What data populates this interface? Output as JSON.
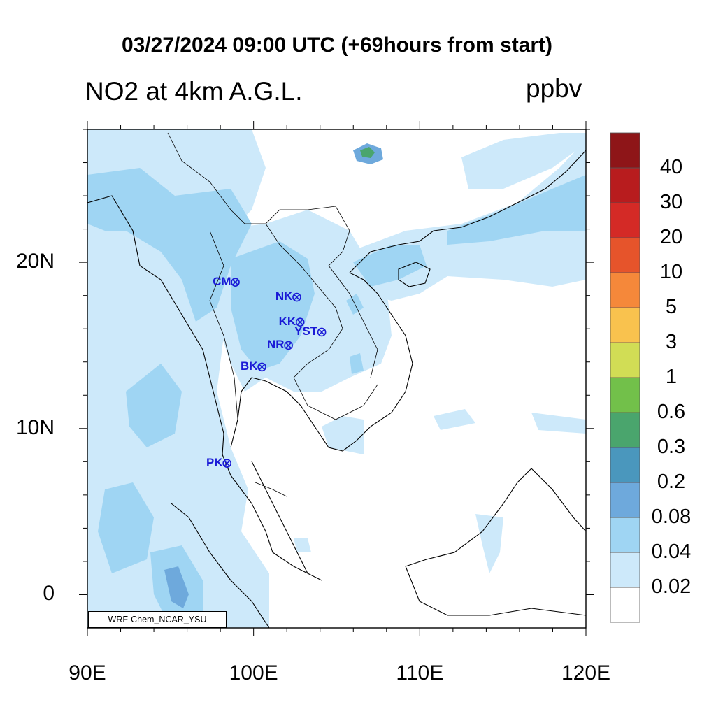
{
  "title": "03/27/2024 09:00 UTC (+69hours from start)",
  "field_name": "NO2 at 4km A.G.L.",
  "units": "ppbv",
  "credit": "WRF-Chem_NCAR_YSU",
  "map": {
    "lon_range": [
      90,
      120
    ],
    "lat_range": [
      -2,
      28
    ],
    "lon_ticks": [
      {
        "value": 90,
        "label": "90E"
      },
      {
        "value": 100,
        "label": "100E"
      },
      {
        "value": 110,
        "label": "110E"
      },
      {
        "value": 120,
        "label": "120E"
      }
    ],
    "lat_ticks": [
      {
        "value": 0,
        "label": "0"
      },
      {
        "value": 10,
        "label": "10N"
      },
      {
        "value": 20,
        "label": "20N"
      }
    ],
    "minor_tick_step_deg": 2
  },
  "colorbar": {
    "levels": [
      "0.02",
      "0.04",
      "0.08",
      "0.2",
      "0.3",
      "0.6",
      "1",
      "3",
      "5",
      "10",
      "20",
      "30",
      "40"
    ],
    "colors": [
      "#ffffff",
      "#cde9fa",
      "#9fd5f3",
      "#6ea9dc",
      "#4a97bd",
      "#4aa56d",
      "#72c04a",
      "#d1dd55",
      "#f9c24e",
      "#f5883a",
      "#e6542b",
      "#d42a26",
      "#b81c1e",
      "#8e1518"
    ]
  },
  "stations": [
    {
      "label": "CM",
      "lon": 98.9,
      "lat": 18.8
    },
    {
      "label": "NK",
      "lon": 102.6,
      "lat": 17.9
    },
    {
      "label": "KK",
      "lon": 102.8,
      "lat": 16.4
    },
    {
      "label": "YST",
      "lon": 104.1,
      "lat": 15.8
    },
    {
      "label": "NR",
      "lon": 102.1,
      "lat": 15.0
    },
    {
      "label": "BK",
      "lon": 100.5,
      "lat": 13.7
    },
    {
      "label": "PK",
      "lon": 98.4,
      "lat": 7.9
    }
  ]
}
